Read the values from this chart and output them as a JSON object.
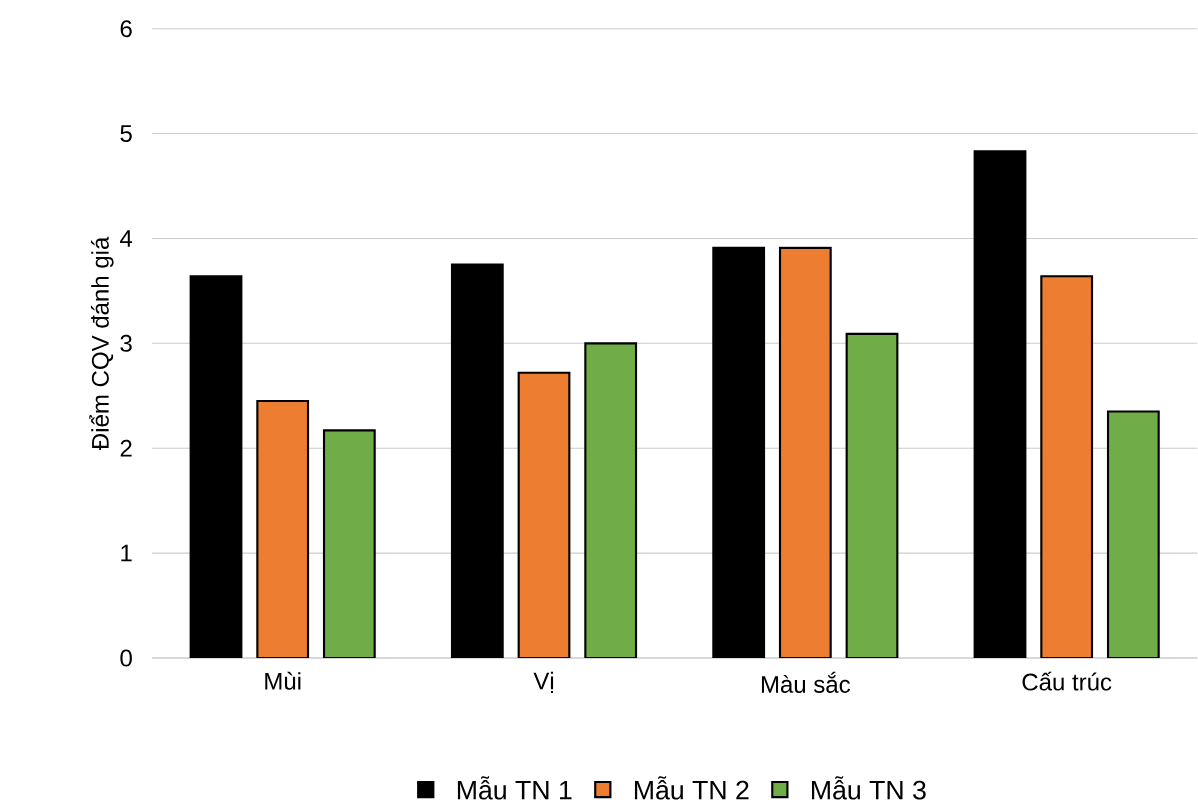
{
  "chart_data": {
    "type": "bar",
    "ylabel": "Điểm CQV đánh giá",
    "categories": [
      "Mùi",
      "Vị",
      "Màu sắc",
      "Cấu trúc"
    ],
    "series": [
      {
        "name": "Mẫu TN 1",
        "color": "#000000",
        "values": [
          3.64,
          3.75,
          3.91,
          4.83
        ]
      },
      {
        "name": "Mẫu TN 2",
        "color": "#ed7d31",
        "values": [
          2.45,
          2.72,
          3.91,
          3.64
        ]
      },
      {
        "name": "Mẫu TN 3",
        "color": "#70ad47",
        "values": [
          2.17,
          3.0,
          3.09,
          2.35
        ]
      }
    ],
    "ylim": [
      0,
      6
    ],
    "yticks": [
      0,
      1,
      2,
      3,
      4,
      5,
      6
    ],
    "grid": "y",
    "legend": "bottom"
  }
}
